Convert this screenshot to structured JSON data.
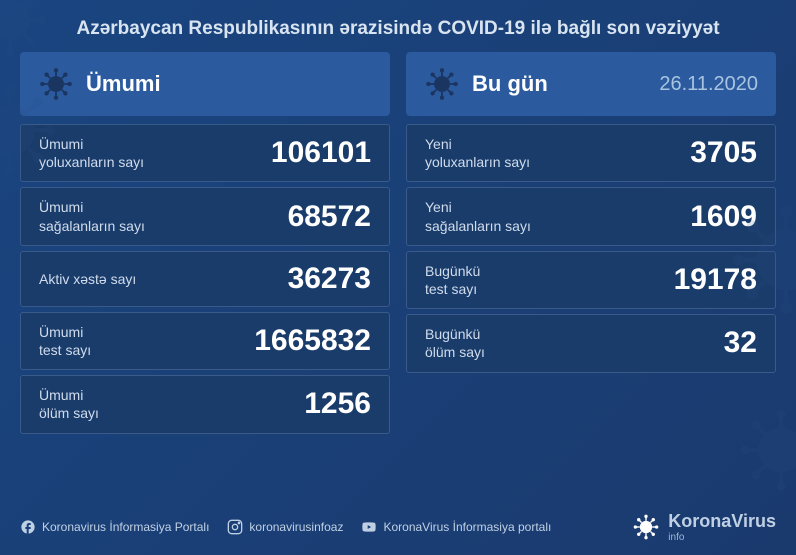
{
  "colors": {
    "bg_gradient_start": "#1a4580",
    "bg_gradient_end": "#1a3a6e",
    "panel_header": "#2b5a9e",
    "stat_row_bg": "#1a3c6b",
    "stat_row_border": "#3a5a8a",
    "text_primary": "#ffffff",
    "text_secondary": "#d0dcec",
    "text_muted": "#a8c4e0"
  },
  "header": {
    "title": "Azərbaycan Respublikasının ərazisində COVID-19 ilə bağlı son vəziyyət"
  },
  "left_panel": {
    "title": "Ümumi",
    "stats": [
      {
        "label": "Ümumi\nyoluxanların sayı",
        "value": "106101"
      },
      {
        "label": "Ümumi\nsağalanların sayı",
        "value": "68572"
      },
      {
        "label": "Aktiv xəstə sayı",
        "value": "36273"
      },
      {
        "label": "Ümumi\ntest sayı",
        "value": "1665832"
      },
      {
        "label": "Ümumi\nölüm sayı",
        "value": "1256"
      }
    ]
  },
  "right_panel": {
    "title": "Bu gün",
    "date": "26.11.2020",
    "stats": [
      {
        "label": "Yeni\nyoluxanların sayı",
        "value": "3705"
      },
      {
        "label": "Yeni\nsağalanların sayı",
        "value": "1609"
      },
      {
        "label": "Bugünkü\ntest sayı",
        "value": "19178"
      },
      {
        "label": "Bugünkü\nölüm sayı",
        "value": "32"
      }
    ]
  },
  "footer": {
    "facebook": "Koronavirus İnformasiya Portalı",
    "instagram": "koronavirusinfoaz",
    "youtube": "KoronaVirus İnformasiya portalı",
    "logo_main": "KoronaVirus",
    "logo_sub": "info"
  }
}
